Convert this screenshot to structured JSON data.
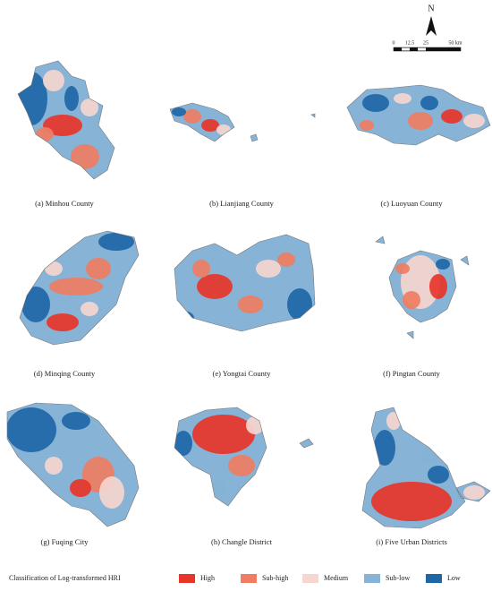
{
  "north_arrow": {
    "label": "N"
  },
  "scale_bar": {
    "labels": [
      "0",
      "12.5",
      "25",
      "50 km"
    ]
  },
  "panels": [
    {
      "caption": "(a) Minhou County"
    },
    {
      "caption": "(b) Lianjiang County"
    },
    {
      "caption": "(c) Luoyuan County"
    },
    {
      "caption": "(d) Minqing County"
    },
    {
      "caption": "(e) Yongtai County"
    },
    {
      "caption": "(f) Pingtan County"
    },
    {
      "caption": "(g) Fuqing City"
    },
    {
      "caption": "(h) Changle District"
    },
    {
      "caption": "(i) Five Urban Districts"
    }
  ],
  "legend": {
    "title": "Classification of Log-transformed HRI",
    "items": [
      {
        "label": "High",
        "color": "#e8352a"
      },
      {
        "label": "Sub-high",
        "color": "#ef7d62"
      },
      {
        "label": "Medium",
        "color": "#f6d6cf"
      },
      {
        "label": "Sub-low",
        "color": "#86b3d6"
      },
      {
        "label": "Low",
        "color": "#1f66a7"
      }
    ]
  }
}
